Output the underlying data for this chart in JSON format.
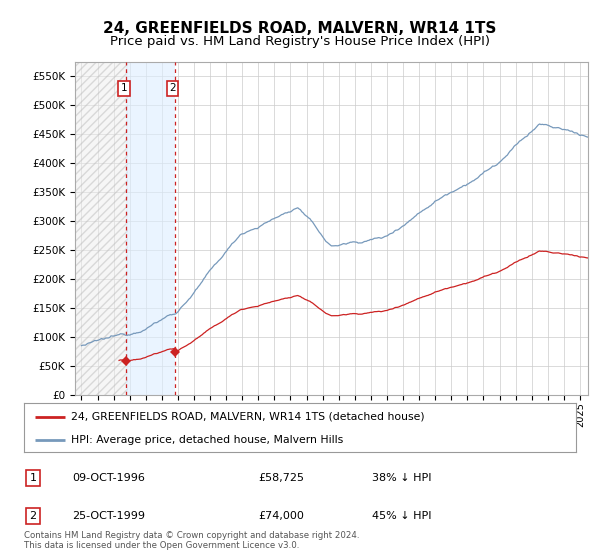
{
  "title": "24, GREENFIELDS ROAD, MALVERN, WR14 1TS",
  "subtitle": "Price paid vs. HM Land Registry's House Price Index (HPI)",
  "red_label": "24, GREENFIELDS ROAD, MALVERN, WR14 1TS (detached house)",
  "blue_label": "HPI: Average price, detached house, Malvern Hills",
  "footnote": "Contains HM Land Registry data © Crown copyright and database right 2024.\nThis data is licensed under the Open Government Licence v3.0.",
  "sale1_date": "09-OCT-1996",
  "sale1_price": 58725,
  "sale1_hpi": "38% ↓ HPI",
  "sale1_year": 1996.79,
  "sale2_date": "25-OCT-1999",
  "sale2_price": 74000,
  "sale2_hpi": "45% ↓ HPI",
  "sale2_year": 1999.81,
  "ylim": [
    0,
    575000
  ],
  "yticks": [
    0,
    50000,
    100000,
    150000,
    200000,
    250000,
    300000,
    350000,
    400000,
    450000,
    500000,
    550000
  ],
  "xlim_left": 1993.6,
  "xlim_right": 2025.5,
  "red_color": "#cc2222",
  "blue_color": "#7799bb",
  "hatch_color": "#cccccc",
  "shade_color": "#ddeeff",
  "grid_color": "#cccccc",
  "title_fontsize": 11,
  "subtitle_fontsize": 9.5
}
